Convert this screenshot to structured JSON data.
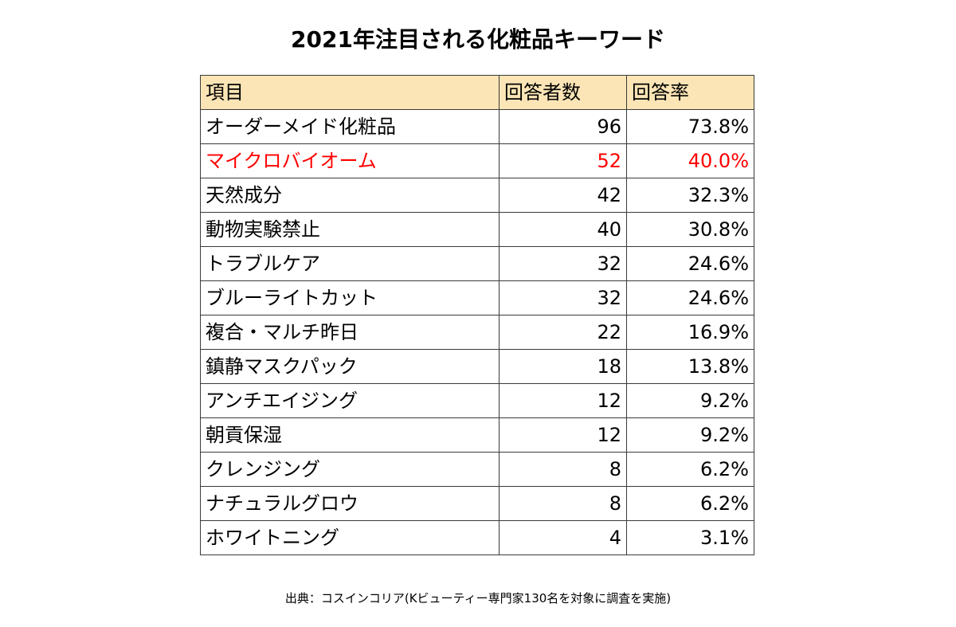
{
  "chart_data": {
    "type": "table",
    "title": "2021年注目される化粧品キーワード",
    "columns": [
      "項目",
      "回答者数",
      "回答率"
    ],
    "rows": [
      {
        "item": "オーダーメイド化粧品",
        "count": "96",
        "rate": "73.8%",
        "highlight": false
      },
      {
        "item": "マイクロバイオーム",
        "count": "52",
        "rate": "40.0%",
        "highlight": true
      },
      {
        "item": "天然成分",
        "count": "42",
        "rate": "32.3%",
        "highlight": false
      },
      {
        "item": "動物実験禁止",
        "count": "40",
        "rate": "30.8%",
        "highlight": false
      },
      {
        "item": "トラブルケア",
        "count": "32",
        "rate": "24.6%",
        "highlight": false
      },
      {
        "item": "ブルーライトカット",
        "count": "32",
        "rate": "24.6%",
        "highlight": false
      },
      {
        "item": "複合・マルチ昨日",
        "count": "22",
        "rate": "16.9%",
        "highlight": false
      },
      {
        "item": "鎮静マスクパック",
        "count": "18",
        "rate": "13.8%",
        "highlight": false
      },
      {
        "item": "アンチエイジング",
        "count": "12",
        "rate": "9.2%",
        "highlight": false
      },
      {
        "item": "朝貢保湿",
        "count": "12",
        "rate": "9.2%",
        "highlight": false
      },
      {
        "item": "クレンジング",
        "count": "8",
        "rate": "6.2%",
        "highlight": false
      },
      {
        "item": "ナチュラルグロウ",
        "count": "8",
        "rate": "6.2%",
        "highlight": false
      },
      {
        "item": "ホワイトニング",
        "count": "4",
        "rate": "3.1%",
        "highlight": false
      }
    ],
    "source": "出典：コスインコリア(Kビューティー専門家130名を対象に調査を実施)"
  },
  "colors": {
    "header_bg": "#fbe5b6",
    "highlight_text": "#ff0000",
    "text": "#000000",
    "border": "#3a3a3a"
  }
}
